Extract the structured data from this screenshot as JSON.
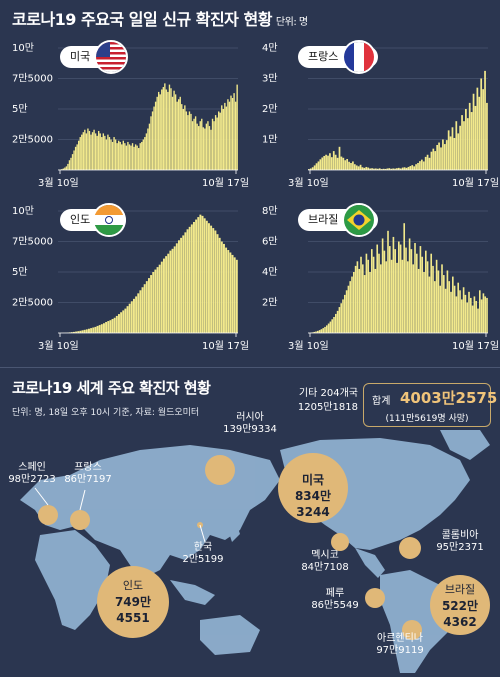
{
  "header": {
    "title": "코로나19 주요국 일일 신규 확진자 현황",
    "unit": "단위: 명"
  },
  "chart_data": [
    {
      "type": "bar",
      "country": "미국",
      "x_start": "3월 10일",
      "x_end": "10월 17일",
      "ytick_labels": [
        "2만5000",
        "5만",
        "7만5000",
        "10만"
      ],
      "yticks": [
        25000,
        50000,
        75000,
        100000
      ],
      "ylim": [
        0,
        100000
      ],
      "values": [
        200,
        400,
        700,
        1200,
        2000,
        3000,
        5000,
        8000,
        10000,
        13000,
        16000,
        19000,
        21000,
        24000,
        27000,
        29000,
        31000,
        33000,
        30000,
        34000,
        32000,
        29000,
        31000,
        33000,
        30000,
        28000,
        32000,
        30000,
        27000,
        30000,
        28000,
        25000,
        29000,
        27000,
        25000,
        23000,
        27000,
        25000,
        22000,
        24000,
        23000,
        21000,
        24000,
        22000,
        20000,
        23000,
        21000,
        20000,
        22000,
        19000,
        21000,
        20000,
        18000,
        22000,
        23000,
        25000,
        27000,
        30000,
        34000,
        38000,
        44000,
        48000,
        52000,
        56000,
        60000,
        64000,
        62000,
        66000,
        68000,
        71000,
        66000,
        64000,
        70000,
        67000,
        60000,
        65000,
        62000,
        56000,
        58000,
        60000,
        54000,
        50000,
        53000,
        48000,
        45000,
        48000,
        46000,
        40000,
        42000,
        44000,
        38000,
        36000,
        40000,
        42000,
        35000,
        34000,
        38000,
        40000,
        36000,
        33000,
        42000,
        40000,
        45000,
        43000,
        48000,
        47000,
        53000,
        50000,
        55000,
        52000,
        58000,
        56000,
        61000,
        59000,
        63000,
        56000,
        70000
      ]
    },
    {
      "type": "bar",
      "country": "프랑스",
      "x_start": "3월 10일",
      "x_end": "10월 17일",
      "ytick_labels": [
        "1만",
        "2만",
        "3만",
        "4만"
      ],
      "yticks": [
        10000,
        20000,
        30000,
        40000
      ],
      "ylim": [
        0,
        40000
      ],
      "values": [
        300,
        500,
        900,
        1500,
        2200,
        2800,
        3500,
        4100,
        4600,
        5000,
        4700,
        5500,
        4200,
        6200,
        5000,
        4000,
        7600,
        4400,
        4000,
        3200,
        3600,
        2700,
        2300,
        2800,
        1900,
        1500,
        1200,
        1700,
        900,
        700,
        1000,
        800,
        500,
        600,
        450,
        500,
        400,
        550,
        300,
        400,
        350,
        500,
        600,
        400,
        500,
        450,
        600,
        700,
        500,
        800,
        900,
        700,
        1000,
        1300,
        1600,
        1200,
        1900,
        2300,
        2900,
        3400,
        2800,
        4300,
        5000,
        4000,
        6000,
        7000,
        6200,
        8200,
        9000,
        7400,
        10000,
        8500,
        9800,
        13000,
        11000,
        14000,
        10500,
        16000,
        12000,
        14500,
        18000,
        16000,
        20000,
        17000,
        22000,
        19000,
        25000,
        21000,
        27000,
        24000,
        30000,
        26500,
        32500,
        22000
      ]
    },
    {
      "type": "bar",
      "country": "인도",
      "x_start": "3월 10일",
      "x_end": "10월 17일",
      "ytick_labels": [
        "2만5000",
        "5만",
        "7만5000",
        "10만"
      ],
      "yticks": [
        25000,
        50000,
        75000,
        100000
      ],
      "ylim": [
        0,
        100000
      ],
      "values": [
        50,
        80,
        120,
        200,
        300,
        500,
        700,
        900,
        1200,
        1500,
        1800,
        2200,
        2600,
        3000,
        3500,
        4000,
        4500,
        5000,
        5800,
        6500,
        7200,
        8000,
        9000,
        9800,
        10500,
        11500,
        12500,
        14000,
        15500,
        17000,
        18500,
        20000,
        22000,
        24000,
        26000,
        28000,
        30000,
        32500,
        35000,
        37500,
        40000,
        42500,
        45000,
        47500,
        50000,
        52000,
        54000,
        56000,
        58500,
        61000,
        63000,
        65000,
        67500,
        69000,
        71000,
        73500,
        76000,
        78000,
        80000,
        82500,
        85000,
        87000,
        89000,
        91000,
        93000,
        95000,
        97000,
        96000,
        94000,
        92000,
        90000,
        88000,
        86000,
        84000,
        81000,
        78000,
        75000,
        73000,
        70000,
        68000,
        66000,
        64000,
        62000,
        60000
      ]
    },
    {
      "type": "bar",
      "country": "브라질",
      "x_start": "3월 10일",
      "x_end": "10월 17일",
      "ytick_labels": [
        "2만",
        "4만",
        "6만",
        "8만"
      ],
      "yticks": [
        20000,
        40000,
        60000,
        80000
      ],
      "ylim": [
        0,
        80000
      ],
      "values": [
        100,
        200,
        400,
        700,
        1000,
        1400,
        1900,
        2500,
        3200,
        4000,
        5000,
        6200,
        7500,
        9000,
        10500,
        12500,
        14500,
        17000,
        19500,
        22000,
        25000,
        28000,
        31000,
        34000,
        37000,
        40000,
        44000,
        47000,
        42000,
        50000,
        45000,
        38000,
        52000,
        48000,
        40000,
        55000,
        50000,
        42000,
        58000,
        52000,
        45000,
        62000,
        54000,
        47000,
        67000,
        57000,
        48000,
        63000,
        55000,
        46000,
        60000,
        58000,
        48000,
        72000,
        56000,
        47000,
        62000,
        55000,
        45000,
        59000,
        52000,
        42000,
        57000,
        50000,
        40000,
        54000,
        47000,
        37000,
        52000,
        44000,
        34000,
        48000,
        41000,
        31000,
        45000,
        38000,
        29000,
        41000,
        34000,
        27000,
        37000,
        31000,
        24000,
        33000,
        28000,
        22000,
        30000,
        25000,
        20000,
        27000,
        23000,
        18000,
        24000,
        21000,
        16000,
        28000,
        22000,
        26000,
        24000,
        23000
      ]
    }
  ],
  "map": {
    "title": "코로나19 세계 주요 확진자 현황",
    "subtitle": "단위: 명, 18일 오후 10시 기준, 자료: 월드오미터",
    "other": {
      "label": "기타 204개국",
      "value": "1205만1818"
    },
    "total": {
      "label": "합계",
      "value": "4003만2575",
      "deaths": "(111만5619명 사망)"
    },
    "countries": [
      {
        "name": "스페인",
        "value": "98만2723"
      },
      {
        "name": "프랑스",
        "value": "86만7197"
      },
      {
        "name": "러시아",
        "value": "139만9334"
      },
      {
        "name": "미국",
        "value1": "834만",
        "value2": "3244"
      },
      {
        "name": "한국",
        "value": "2만5199"
      },
      {
        "name": "멕시코",
        "value": "84만7108"
      },
      {
        "name": "콜롬비아",
        "value": "95만2371"
      },
      {
        "name": "페루",
        "value": "86만5549"
      },
      {
        "name": "인도",
        "value1": "749만",
        "value2": "4551"
      },
      {
        "name": "브라질",
        "value1": "522만",
        "value2": "4362"
      },
      {
        "name": "아르헨티나",
        "value": "97만9119"
      }
    ]
  },
  "colors": {
    "bar": "#f2e98c",
    "background": "#2b3650",
    "bubble": "#e0b878",
    "grid": "#57627e",
    "map": "#8fb0cf"
  },
  "icons": [
    "us-flag-icon",
    "france-flag-icon",
    "india-flag-icon",
    "brazil-flag-icon"
  ]
}
